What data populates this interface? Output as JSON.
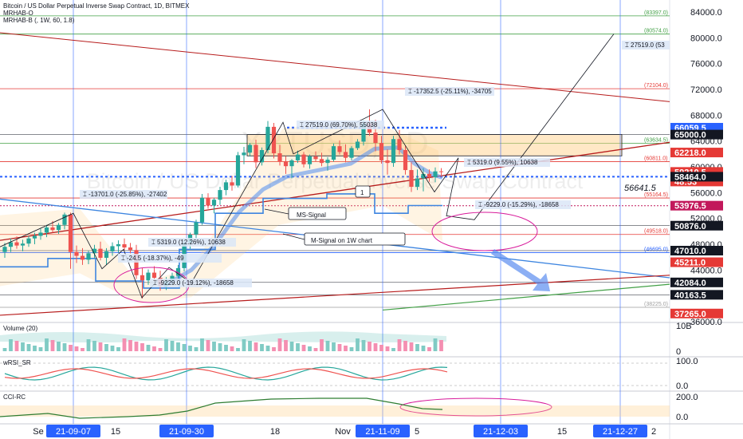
{
  "header": {
    "title": "Bitcoin / US Dollar Perpetual Inverse Swap Contract, 1D, BITMEX",
    "indicator1": "MRHAB-O",
    "indicator2": "MRHAB-B (, 1W, 60, 1.8)"
  },
  "watermark": {
    "symbol": "XBTUSD, 1D",
    "name": "Bitcoin / US Dollar Perpetual Inverse Swap Contract"
  },
  "colors": {
    "candle_up": "#26a69a",
    "candle_down": "#ef5350",
    "signal_line": "#2962ff",
    "ms_signal": "#3d85e0",
    "trend_red": "#b71c1c",
    "trend_green": "#43a047",
    "vertical_blue": "#2962ff",
    "price_blue_badge": "#2962ff",
    "price_red_badge": "#e53935",
    "price_black_badge": "#131722",
    "price_magenta_badge": "#c2185b",
    "ellipse": "#d81b9b",
    "band_orange": "#ffcc80",
    "date_badge": "#2962ff"
  },
  "chart_data": [
    {
      "type": "candlestick",
      "ylim": [
        36000,
        84000
      ],
      "y_ticks": [
        "84000.0",
        "80000.0",
        "76000.0",
        "72000.0",
        "68000.0",
        "64000.0",
        "60000.0",
        "56000.0",
        "52000.0",
        "48000.0",
        "44000.0",
        "40000.0",
        "36000.0"
      ],
      "x_ticks": [
        "Se",
        "21-09-07",
        "15",
        "21-09-30",
        "18",
        "Nov",
        "21-11-09",
        "5",
        "21-12-03",
        "15",
        "21-12-27",
        "2"
      ],
      "x_tick_highlighted": [
        "21-09-07",
        "21-09-30",
        "21-11-09",
        "21-12-03",
        "21-12-27"
      ],
      "ohlc": [
        {
          "d": 0,
          "o": 46800,
          "h": 48200,
          "l": 45900,
          "c": 47600
        },
        {
          "d": 1,
          "o": 47600,
          "h": 48900,
          "l": 46800,
          "c": 48300
        },
        {
          "d": 2,
          "o": 48300,
          "h": 49200,
          "l": 47300,
          "c": 47800
        },
        {
          "d": 3,
          "o": 47800,
          "h": 48700,
          "l": 46900,
          "c": 48100
        },
        {
          "d": 4,
          "o": 48100,
          "h": 49300,
          "l": 47600,
          "c": 48900
        },
        {
          "d": 5,
          "o": 48900,
          "h": 49800,
          "l": 48000,
          "c": 49300
        },
        {
          "d": 6,
          "o": 49300,
          "h": 50400,
          "l": 48700,
          "c": 49800
        },
        {
          "d": 7,
          "o": 49800,
          "h": 51000,
          "l": 49100,
          "c": 50600
        },
        {
          "d": 8,
          "o": 50600,
          "h": 51600,
          "l": 49800,
          "c": 50200
        },
        {
          "d": 9,
          "o": 50200,
          "h": 51300,
          "l": 49600,
          "c": 51000
        },
        {
          "d": 10,
          "o": 51000,
          "h": 52900,
          "l": 50300,
          "c": 52600
        },
        {
          "d": 11,
          "o": 52600,
          "h": 52900,
          "l": 44200,
          "c": 46800
        },
        {
          "d": 12,
          "o": 46800,
          "h": 47800,
          "l": 45100,
          "c": 46200
        },
        {
          "d": 13,
          "o": 46200,
          "h": 47400,
          "l": 44800,
          "c": 45600
        },
        {
          "d": 14,
          "o": 45600,
          "h": 47000,
          "l": 44900,
          "c": 46600
        },
        {
          "d": 15,
          "o": 46600,
          "h": 47900,
          "l": 45800,
          "c": 47300
        },
        {
          "d": 16,
          "o": 47300,
          "h": 48400,
          "l": 45500,
          "c": 45900
        },
        {
          "d": 17,
          "o": 45900,
          "h": 47400,
          "l": 44800,
          "c": 46900
        },
        {
          "d": 18,
          "o": 46900,
          "h": 48300,
          "l": 46200,
          "c": 47700
        },
        {
          "d": 19,
          "o": 47700,
          "h": 48600,
          "l": 46700,
          "c": 48000
        },
        {
          "d": 20,
          "o": 48000,
          "h": 48900,
          "l": 47100,
          "c": 47500
        },
        {
          "d": 21,
          "o": 47500,
          "h": 48200,
          "l": 46600,
          "c": 47100
        },
        {
          "d": 22,
          "o": 47100,
          "h": 47900,
          "l": 42600,
          "c": 43200
        },
        {
          "d": 23,
          "o": 43200,
          "h": 44300,
          "l": 39600,
          "c": 42400
        },
        {
          "d": 24,
          "o": 42400,
          "h": 44100,
          "l": 41700,
          "c": 43600
        },
        {
          "d": 25,
          "o": 43600,
          "h": 44600,
          "l": 42300,
          "c": 42800
        },
        {
          "d": 26,
          "o": 42800,
          "h": 43900,
          "l": 40800,
          "c": 41500
        },
        {
          "d": 27,
          "o": 41500,
          "h": 42900,
          "l": 40900,
          "c": 42300
        },
        {
          "d": 28,
          "o": 42300,
          "h": 43600,
          "l": 41700,
          "c": 43100
        },
        {
          "d": 29,
          "o": 43100,
          "h": 44800,
          "l": 42600,
          "c": 44300
        },
        {
          "d": 30,
          "o": 44300,
          "h": 48700,
          "l": 43800,
          "c": 48200
        },
        {
          "d": 31,
          "o": 48200,
          "h": 49800,
          "l": 47300,
          "c": 49500
        },
        {
          "d": 32,
          "o": 49500,
          "h": 51800,
          "l": 48900,
          "c": 51400
        },
        {
          "d": 33,
          "o": 51400,
          "h": 55800,
          "l": 51000,
          "c": 55200
        },
        {
          "d": 34,
          "o": 55200,
          "h": 55900,
          "l": 53500,
          "c": 54000
        },
        {
          "d": 35,
          "o": 54000,
          "h": 55200,
          "l": 52800,
          "c": 54900
        },
        {
          "d": 36,
          "o": 54900,
          "h": 56900,
          "l": 54100,
          "c": 56400
        },
        {
          "d": 37,
          "o": 56400,
          "h": 58000,
          "l": 55600,
          "c": 57600
        },
        {
          "d": 38,
          "o": 57600,
          "h": 58600,
          "l": 56300,
          "c": 57100
        },
        {
          "d": 39,
          "o": 57100,
          "h": 62300,
          "l": 56800,
          "c": 61800
        },
        {
          "d": 40,
          "o": 61800,
          "h": 63100,
          "l": 60400,
          "c": 62200
        },
        {
          "d": 41,
          "o": 62200,
          "h": 63700,
          "l": 61600,
          "c": 63400
        },
        {
          "d": 42,
          "o": 63400,
          "h": 64200,
          "l": 59800,
          "c": 60700
        },
        {
          "d": 43,
          "o": 60700,
          "h": 63000,
          "l": 60200,
          "c": 62600
        },
        {
          "d": 44,
          "o": 62600,
          "h": 67100,
          "l": 62100,
          "c": 66200
        },
        {
          "d": 45,
          "o": 66200,
          "h": 66800,
          "l": 61300,
          "c": 62100
        },
        {
          "d": 46,
          "o": 62100,
          "h": 63400,
          "l": 60200,
          "c": 60800
        },
        {
          "d": 47,
          "o": 60800,
          "h": 61700,
          "l": 58900,
          "c": 60100
        },
        {
          "d": 48,
          "o": 60100,
          "h": 61200,
          "l": 58200,
          "c": 61000
        },
        {
          "d": 49,
          "o": 61000,
          "h": 62500,
          "l": 60600,
          "c": 61900
        },
        {
          "d": 50,
          "o": 61900,
          "h": 62300,
          "l": 59900,
          "c": 60400
        },
        {
          "d": 51,
          "o": 60400,
          "h": 61900,
          "l": 59700,
          "c": 61600
        },
        {
          "d": 52,
          "o": 61600,
          "h": 62400,
          "l": 60800,
          "c": 61200
        },
        {
          "d": 53,
          "o": 61200,
          "h": 62200,
          "l": 60100,
          "c": 60600
        },
        {
          "d": 54,
          "o": 60600,
          "h": 61500,
          "l": 59400,
          "c": 61100
        },
        {
          "d": 55,
          "o": 61100,
          "h": 63600,
          "l": 60800,
          "c": 63200
        },
        {
          "d": 56,
          "o": 63200,
          "h": 64100,
          "l": 61900,
          "c": 62300
        },
        {
          "d": 57,
          "o": 62300,
          "h": 63500,
          "l": 60700,
          "c": 61400
        },
        {
          "d": 58,
          "o": 61400,
          "h": 63200,
          "l": 61000,
          "c": 62900
        },
        {
          "d": 59,
          "o": 62900,
          "h": 64300,
          "l": 62600,
          "c": 63900
        },
        {
          "d": 60,
          "o": 63900,
          "h": 67200,
          "l": 63300,
          "c": 66700
        },
        {
          "d": 61,
          "o": 66700,
          "h": 68900,
          "l": 64800,
          "c": 65300
        },
        {
          "d": 62,
          "o": 65300,
          "h": 67300,
          "l": 62400,
          "c": 63700
        },
        {
          "d": 63,
          "o": 63700,
          "h": 64800,
          "l": 60500,
          "c": 61000
        },
        {
          "d": 64,
          "o": 61000,
          "h": 62700,
          "l": 58800,
          "c": 60600
        },
        {
          "d": 65,
          "o": 60600,
          "h": 64800,
          "l": 60000,
          "c": 64300
        },
        {
          "d": 66,
          "o": 64300,
          "h": 65700,
          "l": 61900,
          "c": 62600
        },
        {
          "d": 67,
          "o": 62600,
          "h": 63200,
          "l": 58800,
          "c": 59500
        },
        {
          "d": 68,
          "o": 59500,
          "h": 60700,
          "l": 56100,
          "c": 56900
        },
        {
          "d": 69,
          "o": 56900,
          "h": 59600,
          "l": 56400,
          "c": 58200
        },
        {
          "d": 70,
          "o": 58200,
          "h": 59800,
          "l": 56200,
          "c": 58900
        },
        {
          "d": 71,
          "o": 58900,
          "h": 59600,
          "l": 57700,
          "c": 58400
        },
        {
          "d": 72,
          "o": 58400,
          "h": 59900,
          "l": 57600,
          "c": 59300
        },
        {
          "d": 73,
          "o": 59300,
          "h": 59800,
          "l": 58400,
          "c": 59210
        }
      ],
      "price_labels": [
        {
          "value": "66059.5",
          "style": "blue"
        },
        {
          "value": "65000.0",
          "style": "black"
        },
        {
          "value": "62218.0",
          "style": "red"
        },
        {
          "value": "59210.5",
          "style": "red"
        },
        {
          "value": "48:53",
          "style": "red"
        },
        {
          "value": "58464.0",
          "style": "black"
        },
        {
          "value": "53976.5",
          "style": "magenta"
        },
        {
          "value": "50876.0",
          "style": "black"
        },
        {
          "value": "47010.0",
          "style": "black"
        },
        {
          "value": "45211.0",
          "style": "red"
        },
        {
          "value": "42084.0",
          "style": "black"
        },
        {
          "value": "40163.5",
          "style": "black"
        },
        {
          "value": "37265.0",
          "style": "red"
        }
      ],
      "level_labels": [
        "(83397.0)",
        "(80574.0)",
        "(72104.0)",
        "(63634.5)",
        "(60811.0)",
        "(55164.5)",
        "(49518.0)",
        "(46695.0)",
        "(38225.0)"
      ],
      "current_price_text": "56641.5",
      "annotations": [
        "27519.0 (53",
        "-17352.5 (-25.11%), -34705",
        "27519.0 (69.70%), 55038",
        "5319.0 (9.55%), 10638",
        "-13701.0 (-25.85%), -27402",
        "-9229.0 (-15.29%), -18658",
        "5319.0 (12.26%), 10638",
        "-24.5 (-18.37%), -49",
        "-9229.0 (-19.12%), -18658",
        "1",
        "MS-Signal",
        "M-Signal on 1W chart"
      ]
    },
    {
      "type": "bar",
      "title": "Volume (20)",
      "y_ticks": [
        "10B",
        "0"
      ]
    },
    {
      "type": "line",
      "title": "wRSI_SR",
      "y_ticks": [
        "100.0",
        "0.0"
      ]
    },
    {
      "type": "line",
      "title": "CCI-RC",
      "y_ticks": [
        "200.0",
        "0.0"
      ]
    }
  ]
}
